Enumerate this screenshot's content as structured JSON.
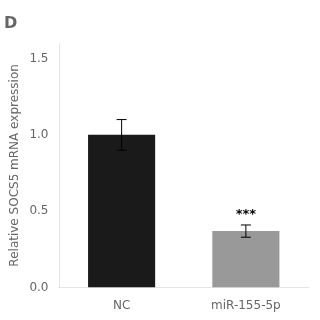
{
  "chart_data": {
    "type": "bar",
    "title": "D",
    "categories": [
      "NC",
      "miR-155-5p"
    ],
    "values": [
      1.0,
      0.37
    ],
    "errors": [
      0.1,
      0.04
    ],
    "colors": [
      "#1a1a1a",
      "#999999"
    ],
    "ylabel": "Relative SOCS5 mRNA expression",
    "ylim": [
      0,
      1.6
    ],
    "yticks": [
      {
        "value": 0,
        "label": "0.0"
      },
      0.5,
      {
        "value": 1,
        "label": "1.0"
      },
      1.5
    ],
    "annotations": [
      {
        "text": "***",
        "x": "miR-155-5p"
      }
    ],
    "grid": false
  }
}
